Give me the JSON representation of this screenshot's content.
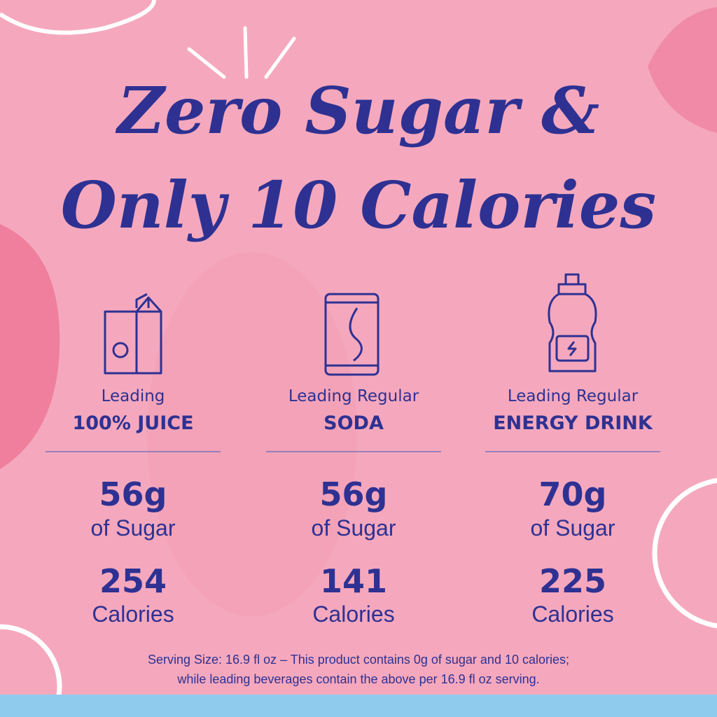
{
  "header": {
    "title_line1": "Zero Sugar &",
    "title_line2": "Only 10 Calories"
  },
  "columns": [
    {
      "label": "Leading",
      "name": "100% JUICE",
      "sugar": "56g",
      "sugar_unit": "of Sugar",
      "calories": "254",
      "calories_unit": "Calories"
    },
    {
      "label": "Leading Regular",
      "name": "SODA",
      "sugar": "56g",
      "sugar_unit": "of Sugar",
      "calories": "141",
      "calories_unit": "Calories"
    },
    {
      "label": "Leading Regular",
      "name": "ENERGY DRINK",
      "sugar": "70g",
      "sugar_unit": "of Sugar",
      "calories": "225",
      "calories_unit": "Calories"
    }
  ],
  "footnote": {
    "line1": "Serving Size: 16.9 fl oz – This product contains 0g of sugar and 10 calories;",
    "line2": "while leading beverages contain the above per 16.9 fl oz serving."
  }
}
